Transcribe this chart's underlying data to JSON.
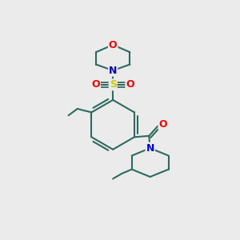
{
  "background_color": "#ebebeb",
  "bond_color": "#2d6b5e",
  "bond_width": 1.5,
  "atom_colors": {
    "O": "#ff0000",
    "N": "#0000ee",
    "S": "#cccc00",
    "C": "#2d6b5e"
  },
  "figsize": [
    3.0,
    3.0
  ],
  "dpi": 100
}
